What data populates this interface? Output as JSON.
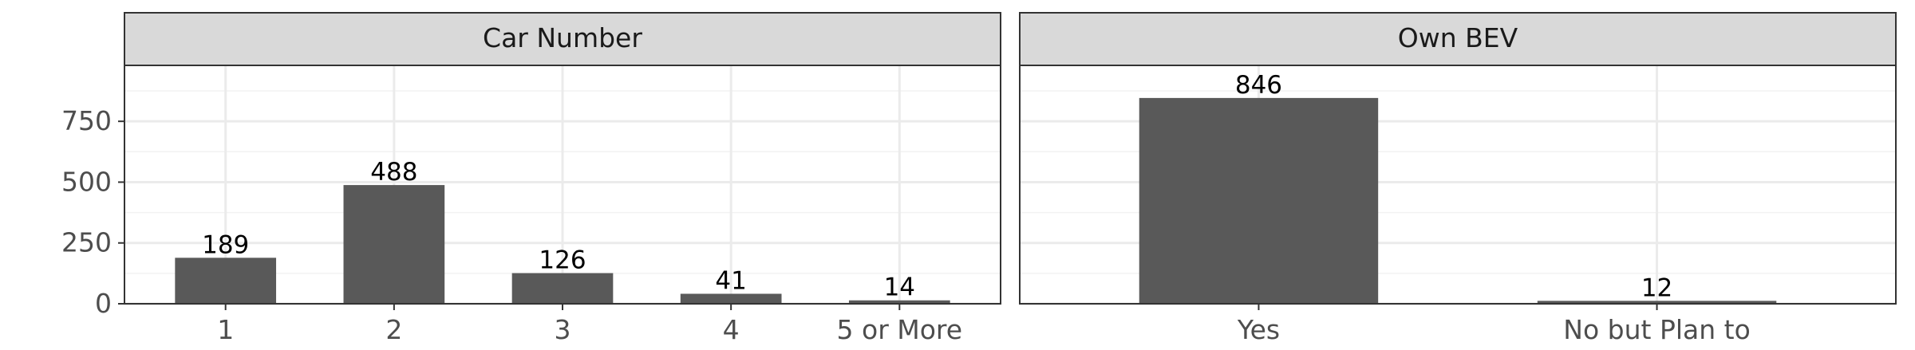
{
  "chart_data": [
    {
      "type": "bar",
      "panel_title": "Car Number",
      "categories": [
        "1",
        "2",
        "3",
        "4",
        "5 or More"
      ],
      "values": [
        189,
        488,
        126,
        41,
        14
      ],
      "data_labels": [
        "189",
        "488",
        "126",
        "41",
        "14"
      ],
      "ylim": [
        0,
        980
      ],
      "yticks": [
        0,
        250,
        500,
        750
      ],
      "ytick_labels": [
        "0",
        "250",
        "500",
        "750"
      ],
      "grid": true
    },
    {
      "type": "bar",
      "panel_title": "Own BEV",
      "categories": [
        "Yes",
        "No but Plan to"
      ],
      "values": [
        846,
        12
      ],
      "data_labels": [
        "846",
        "12"
      ],
      "ylim": [
        0,
        980
      ],
      "grid": true
    }
  ],
  "colors": {
    "bar": "#595959",
    "strip_fill": "#d9d9d9",
    "panel_border": "#333333",
    "grid_major": "#ebebeb",
    "grid_minor": "#f2f2f2"
  }
}
